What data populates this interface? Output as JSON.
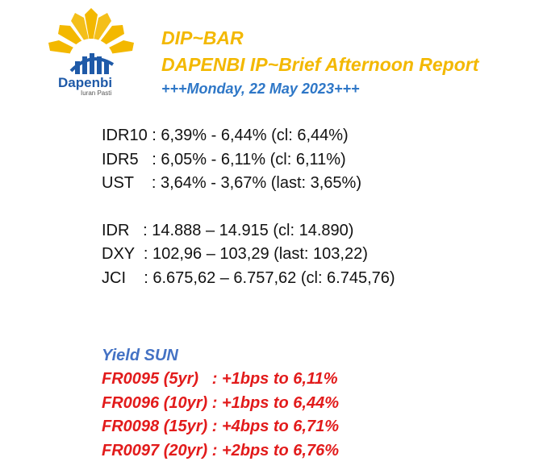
{
  "logo": {
    "name": "Dapenbi",
    "tagline": "Iuran Pasti"
  },
  "header": {
    "title": "DIP~BAR",
    "subtitle": "DAPENBI IP~Brief Afternoon Report",
    "date": "+++Monday, 22 May 2023+++"
  },
  "rates": [
    "IDR10 : 6,39% - 6,44% (cl: 6,44%)",
    "IDR5   : 6,05% - 6,11% (cl: 6,11%)",
    "UST    : 3,64% - 3,67% (last: 3,65%)"
  ],
  "markets": [
    "IDR   : 14.888 – 14.915 (cl: 14.890)",
    "DXY  : 102,96 – 103,29 (last: 103,22)",
    "JCI    : 6.675,62 – 6.757,62 (cl: 6.745,76)"
  ],
  "yield_sun": {
    "title": "Yield SUN",
    "rows": [
      "FR0095 (5yr)   : +1bps to 6,11%",
      "FR0096 (10yr) : +1bps to 6,44%",
      "FR0098 (15yr) : +4bps to 6,71%",
      "FR0097 (20yr) : +2bps to 6,76%"
    ]
  },
  "colors": {
    "gold": "#f3b800",
    "blue": "#2e77c7",
    "red": "#e21b1b",
    "sun_blue": "#4472c4"
  }
}
